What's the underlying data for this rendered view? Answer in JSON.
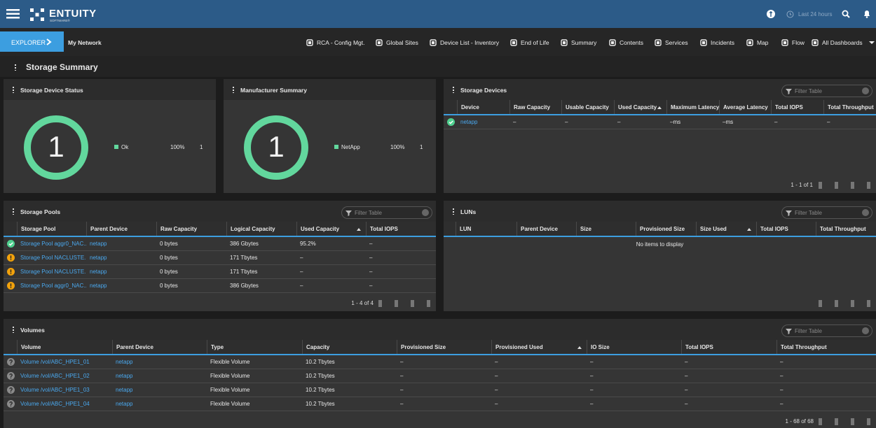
{
  "header": {
    "logo": "ENTUITY",
    "logo_sub": "SOFTWARE®",
    "time_range": "Last 24 hours"
  },
  "nav": {
    "explorer": "EXPLORER",
    "context": "My Network",
    "tabs": [
      "RCA - Config Mgt.",
      "Global Sites",
      "Device List - Inventory",
      "End of Life",
      "Summary",
      "Contents",
      "Services",
      "Incidents",
      "Map",
      "Flow",
      "All Dashboards"
    ]
  },
  "page_title": "Storage Summary",
  "panels": {
    "device_status": {
      "title": "Storage Device Status",
      "total": "1",
      "legend": [
        {
          "label": "Ok",
          "percent": "100%",
          "count": "1"
        }
      ]
    },
    "manufacturer": {
      "title": "Manufacturer Summary",
      "total": "1",
      "legend": [
        {
          "label": "NetApp",
          "percent": "100%",
          "count": "1"
        }
      ]
    },
    "devices": {
      "title": "Storage Devices",
      "filter": "Filter Table",
      "columns": [
        "Device",
        "Raw Capacity",
        "Usable Capacity",
        "Used Capacity",
        "Maximum Latency",
        "Average Latency",
        "Total IOPS",
        "Total Throughput"
      ],
      "rows": [
        [
          "netapp",
          "–",
          "–",
          "–",
          "–ms",
          "–ms",
          "–",
          "–"
        ]
      ],
      "pager": "1 - 1 of 1"
    },
    "pools": {
      "title": "Storage Pools",
      "filter": "Filter Table",
      "columns": [
        "Storage Pool",
        "Parent Device",
        "Raw Capacity",
        "Logical Capacity",
        "Used Capacity",
        "Total IOPS"
      ],
      "rows": [
        [
          "Storage Pool aggr0_NAC...",
          "netapp",
          "0 bytes",
          "386 Gbytes",
          "95.2%",
          "–"
        ],
        [
          "Storage Pool NACLUSTE...",
          "netapp",
          "0 bytes",
          "171 Tbytes",
          "–",
          "–"
        ],
        [
          "Storage Pool NACLUSTE...",
          "netapp",
          "0 bytes",
          "171 Tbytes",
          "–",
          "–"
        ],
        [
          "Storage Pool aggr0_NAC...",
          "netapp",
          "0 bytes",
          "386 Gbytes",
          "–",
          "–"
        ]
      ],
      "pager": "1 - 4 of 4"
    },
    "luns": {
      "title": "LUNs",
      "filter": "Filter Table",
      "columns": [
        "LUN",
        "Parent Device",
        "Size",
        "Provisioned Size",
        "Size Used",
        "Total IOPS",
        "Total Throughput"
      ],
      "empty": "No items to display"
    },
    "volumes": {
      "title": "Volumes",
      "filter": "Filter Table",
      "columns": [
        "Volume",
        "Parent Device",
        "Type",
        "Capacity",
        "Provisioned Size",
        "Provisioned Used",
        "IO Size",
        "Total IOPS",
        "Total Throughput"
      ],
      "rows": [
        [
          "Volume /vol/ABC_HPE1_01",
          "netapp",
          "Flexible Volume",
          "10.2 Tbytes",
          "–",
          "–",
          "–",
          "–",
          "–"
        ],
        [
          "Volume /vol/ABC_HPE1_02",
          "netapp",
          "Flexible Volume",
          "10.2 Tbytes",
          "–",
          "–",
          "–",
          "–",
          "–"
        ],
        [
          "Volume /vol/ABC_HPE1_03",
          "netapp",
          "Flexible Volume",
          "10.2 Tbytes",
          "–",
          "–",
          "–",
          "–",
          "–"
        ],
        [
          "Volume /vol/ABC_HPE1_04",
          "netapp",
          "Flexible Volume",
          "10.2 Tbytes",
          "–",
          "–",
          "–",
          "–",
          "–"
        ]
      ],
      "pager": "1 - 68 of 68"
    }
  }
}
